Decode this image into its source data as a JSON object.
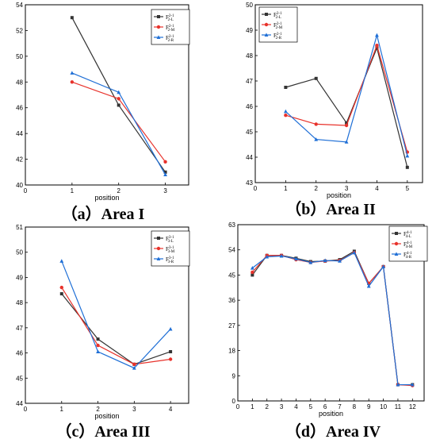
{
  "chart_data": [
    {
      "type": "line",
      "caption": "（a）Area I",
      "xlabel": "position",
      "xlim": [
        0,
        3.5
      ],
      "xticks": [
        0,
        1,
        2,
        3
      ],
      "ylim": [
        40,
        54
      ],
      "yticks": [
        40,
        42,
        44,
        46,
        48,
        50,
        52,
        54
      ],
      "legend_position": "top-right",
      "series": [
        {
          "name": "F_{2-L}^{2-1}",
          "color": "#333333",
          "marker": "square",
          "x": [
            1,
            2,
            3
          ],
          "values": [
            53.0,
            46.2,
            41.0
          ]
        },
        {
          "name": "F_{2-M}^{2-1}",
          "color": "#e8322b",
          "marker": "circle",
          "x": [
            1,
            2,
            3
          ],
          "values": [
            48.0,
            46.7,
            41.8
          ]
        },
        {
          "name": "F_{2-R}^{2-1}",
          "color": "#1f6fd6",
          "marker": "triangle",
          "x": [
            1,
            2,
            3
          ],
          "values": [
            48.7,
            47.2,
            40.8
          ]
        }
      ]
    },
    {
      "type": "line",
      "caption": "（b）Area II",
      "xlabel": "position",
      "xlim": [
        0,
        5.5
      ],
      "xticks": [
        0,
        1,
        2,
        3,
        4,
        5
      ],
      "ylim": [
        43,
        50
      ],
      "yticks": [
        43,
        44,
        45,
        46,
        47,
        48,
        49,
        50
      ],
      "legend_position": "top-left",
      "series": [
        {
          "name": "F_{2-L}^{2-1}",
          "color": "#333333",
          "marker": "square",
          "x": [
            1,
            2,
            3,
            4,
            5
          ],
          "values": [
            46.75,
            47.1,
            45.35,
            48.3,
            43.6
          ]
        },
        {
          "name": "F_{2-M}^{2-1}",
          "color": "#e8322b",
          "marker": "circle",
          "x": [
            1,
            2,
            3,
            4,
            5
          ],
          "values": [
            45.65,
            45.3,
            45.25,
            48.4,
            44.2
          ]
        },
        {
          "name": "F_{2-R}^{2-1}",
          "color": "#1f6fd6",
          "marker": "triangle",
          "x": [
            1,
            2,
            3,
            4,
            5
          ],
          "values": [
            45.8,
            44.7,
            44.6,
            48.8,
            44.05
          ]
        }
      ]
    },
    {
      "type": "line",
      "caption": "（c）Area III",
      "xlabel": "position",
      "xlim": [
        0,
        4.5
      ],
      "xticks": [
        0,
        1,
        2,
        3,
        4
      ],
      "ylim": [
        44,
        51
      ],
      "yticks": [
        44,
        45,
        46,
        47,
        48,
        49,
        50,
        51
      ],
      "legend_position": "top-right",
      "series": [
        {
          "name": "F_{3-L}^{3-1}",
          "color": "#333333",
          "marker": "square",
          "x": [
            1,
            2,
            3,
            4
          ],
          "values": [
            48.35,
            46.55,
            45.55,
            46.05
          ]
        },
        {
          "name": "F_{3-M}^{3-1}",
          "color": "#e8322b",
          "marker": "circle",
          "x": [
            1,
            2,
            3,
            4
          ],
          "values": [
            48.6,
            46.3,
            45.55,
            45.75
          ]
        },
        {
          "name": "F_{3-R}^{3-1}",
          "color": "#1f6fd6",
          "marker": "triangle",
          "x": [
            1,
            2,
            3,
            4
          ],
          "values": [
            49.65,
            46.05,
            45.4,
            46.95
          ]
        }
      ]
    },
    {
      "type": "line",
      "caption": "（d）Area IV",
      "xlabel": "position",
      "xlim": [
        0,
        12.8
      ],
      "xticks": [
        0,
        1,
        2,
        3,
        4,
        5,
        6,
        7,
        8,
        9,
        10,
        11,
        12
      ],
      "ylim": [
        0,
        63
      ],
      "yticks": [
        0,
        9,
        18,
        27,
        36,
        45,
        54,
        63
      ],
      "legend_position": "top-right",
      "series": [
        {
          "name": "F_{4-L}^{4-1}",
          "color": "#333333",
          "marker": "square",
          "x": [
            1,
            2,
            3,
            4,
            5,
            6,
            7,
            8,
            9,
            10,
            11,
            12
          ],
          "values": [
            45.0,
            52.0,
            52.0,
            51.0,
            49.8,
            50.0,
            50.5,
            53.5,
            42.0,
            48.0,
            5.8,
            5.8
          ]
        },
        {
          "name": "F_{4-M}^{4-1}",
          "color": "#e8322b",
          "marker": "circle",
          "x": [
            1,
            2,
            3,
            4,
            5,
            6,
            7,
            8,
            9,
            10,
            11,
            12
          ],
          "values": [
            46.0,
            52.0,
            52.0,
            50.5,
            49.5,
            50.0,
            50.2,
            53.0,
            42.0,
            48.0,
            5.8,
            5.5
          ]
        },
        {
          "name": "F_{4-R}^{4-1}",
          "color": "#1f6fd6",
          "marker": "triangle",
          "x": [
            1,
            2,
            3,
            4,
            5,
            6,
            7,
            8,
            9,
            10,
            11,
            12
          ],
          "values": [
            47.5,
            51.5,
            51.8,
            50.8,
            49.5,
            50.2,
            50.0,
            53.0,
            41.0,
            48.0,
            5.8,
            5.8
          ]
        }
      ]
    }
  ]
}
